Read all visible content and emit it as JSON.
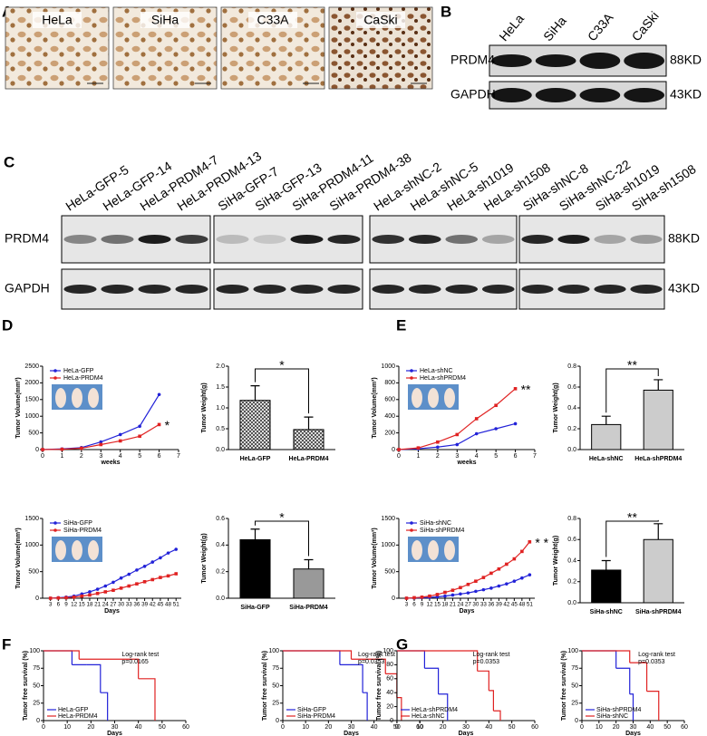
{
  "panel_labels": [
    "A",
    "B",
    "C",
    "D",
    "E",
    "F",
    "G"
  ],
  "panel_a": {
    "cells": [
      "HeLa",
      "SiHa",
      "C33A",
      "CaSki"
    ]
  },
  "panel_b": {
    "lanes": [
      "HeLa",
      "SiHa",
      "C33A",
      "CaSki"
    ],
    "blots": [
      {
        "protein": "PRDM4",
        "size": "88KD"
      },
      {
        "protein": "GAPDH",
        "size": "43KD"
      }
    ]
  },
  "panel_c": {
    "groups": [
      [
        "HeLa-GFP-5",
        "HeLa-GFP-14",
        "HeLa-PRDM4-7",
        "HeLa-PRDM4-13"
      ],
      [
        "SiHa-GFP-7",
        "SiHa-GFP-13",
        "SiHa-PRDM4-11",
        "SiHa-PRDM4-38"
      ],
      [
        "HeLa-shNC-2",
        "HeLa-shNC-5",
        "HeLa-sh1019",
        "HeLa-sh1508"
      ],
      [
        "SiHa-shNC-8",
        "SiHa-shNC-22",
        "SiHa-sh1019",
        "SiHa-sh1508"
      ]
    ],
    "blots": [
      {
        "protein": "PRDM4",
        "size": "88KD"
      },
      {
        "protein": "GAPDH",
        "size": "43KD"
      }
    ]
  },
  "charts": [
    {
      "type": "line",
      "xlabel": "weeks",
      "ylabel": "Tumor Volume(mm³)",
      "x": [
        0,
        1,
        2,
        3,
        4,
        5,
        6
      ],
      "xlim": [
        0,
        7
      ],
      "xticks": [
        0,
        1,
        2,
        3,
        4,
        5,
        6,
        7
      ],
      "ylim": [
        0,
        2500
      ],
      "yticks": [
        0,
        500,
        1000,
        1500,
        2000,
        2500
      ],
      "series": [
        {
          "name": "HeLa-GFP",
          "color": "#2222d8",
          "values": [
            0,
            20,
            60,
            230,
            450,
            700,
            1650
          ]
        },
        {
          "name": "HeLa-PRDM4",
          "color": "#e02222",
          "values": [
            0,
            10,
            40,
            150,
            260,
            400,
            750
          ]
        }
      ],
      "annotation": "*"
    },
    {
      "type": "bar",
      "ylabel": "Tumor Weight(g)",
      "categories": [
        "HeLa-GFP",
        "HeLa-PRDM4"
      ],
      "values": [
        1.18,
        0.48
      ],
      "errors": [
        0.35,
        0.3
      ],
      "colors": [
        "#888888",
        "#aaaaaa"
      ],
      "hatch": true,
      "ylim": [
        0,
        2
      ],
      "yticks": [
        {
          "value": 0,
          "label": "0.0"
        },
        {
          "value": 0.5,
          "label": "0.5"
        },
        {
          "value": 1,
          "label": "1.0"
        },
        {
          "value": 1.5,
          "label": "1.5"
        },
        {
          "value": 2,
          "label": "2.0"
        }
      ],
      "annotation": "*"
    },
    {
      "type": "line",
      "xlabel": "Days",
      "ylabel": "Tumor Volume(mm³)",
      "x": [
        3,
        6,
        9,
        12,
        15,
        18,
        21,
        24,
        27,
        30,
        33,
        36,
        39,
        42,
        45,
        48,
        51
      ],
      "xlim": [
        0,
        53
      ],
      "xticks": [
        3,
        6,
        9,
        12,
        15,
        18,
        21,
        24,
        27,
        30,
        33,
        36,
        39,
        42,
        45,
        48,
        51
      ],
      "ylim": [
        0,
        1500
      ],
      "yticks": [
        0,
        500,
        1000,
        1500
      ],
      "series": [
        {
          "name": "SiHa-GFP",
          "color": "#2222d8",
          "values": [
            0,
            10,
            20,
            40,
            80,
            120,
            170,
            230,
            300,
            380,
            450,
            530,
            600,
            680,
            760,
            850,
            920
          ]
        },
        {
          "name": "SiHa-PRDM4",
          "color": "#e02222",
          "values": [
            0,
            5,
            10,
            20,
            40,
            60,
            90,
            120,
            150,
            190,
            230,
            270,
            310,
            350,
            390,
            420,
            460
          ]
        }
      ]
    },
    {
      "type": "bar",
      "ylabel": "Tumor Weight(g)",
      "categories": [
        "SiHa-GFP",
        "SiHa-PRDM4"
      ],
      "values": [
        0.44,
        0.22
      ],
      "errors": [
        0.08,
        0.07
      ],
      "colors": [
        "#000000",
        "#999999"
      ],
      "hatch": false,
      "ylim": [
        0,
        0.6
      ],
      "yticks": [
        {
          "value": 0,
          "label": "0.0"
        },
        {
          "value": 0.2,
          "label": "0.2"
        },
        {
          "value": 0.4,
          "label": "0.4"
        },
        {
          "value": 0.6,
          "label": "0.6"
        }
      ],
      "annotation": "*"
    },
    {
      "type": "line",
      "xlabel": "weeks",
      "ylabel": "Tumor Volume(mm³)",
      "x": [
        0,
        1,
        2,
        3,
        4,
        5,
        6
      ],
      "xlim": [
        0,
        7
      ],
      "xticks": [
        0,
        1,
        2,
        3,
        4,
        5,
        6,
        7
      ],
      "ylim": [
        0,
        1000
      ],
      "yticks": [
        0,
        200,
        400,
        600,
        800,
        1000
      ],
      "series": [
        {
          "name": "HeLa-shNC",
          "color": "#2222d8",
          "values": [
            0,
            10,
            30,
            60,
            190,
            250,
            310
          ]
        },
        {
          "name": "HeLa-shPRDM4",
          "color": "#e02222",
          "values": [
            0,
            20,
            90,
            180,
            370,
            530,
            730
          ]
        }
      ],
      "annotation": "**"
    },
    {
      "type": "bar",
      "ylabel": "Tumor Weight(g)",
      "categories": [
        "HeLa-shNC",
        "HeLa-shPRDM4"
      ],
      "values": [
        0.24,
        0.57
      ],
      "errors": [
        0.08,
        0.1
      ],
      "colors": [
        "#cccccc",
        "#cccccc"
      ],
      "hatch": false,
      "ylim": [
        0,
        0.8
      ],
      "yticks": [
        {
          "value": 0,
          "label": "0.0"
        },
        {
          "value": 0.2,
          "label": "0.2"
        },
        {
          "value": 0.4,
          "label": "0.4"
        },
        {
          "value": 0.6,
          "label": "0.6"
        },
        {
          "value": 0.8,
          "label": "0.8"
        }
      ],
      "annotation": "**"
    },
    {
      "type": "line",
      "xlabel": "Days",
      "ylabel": "Tumor Volume(mm³)",
      "x": [
        3,
        6,
        9,
        12,
        15,
        18,
        21,
        24,
        27,
        30,
        33,
        36,
        39,
        42,
        45,
        48,
        51
      ],
      "xlim": [
        0,
        53
      ],
      "xticks": [
        3,
        6,
        9,
        12,
        15,
        18,
        21,
        24,
        27,
        30,
        33,
        36,
        39,
        42,
        45,
        48,
        51
      ],
      "ylim": [
        0,
        1500
      ],
      "yticks": [
        0,
        500,
        1000,
        1500
      ],
      "series": [
        {
          "name": "SiHa-shNC",
          "color": "#2222d8",
          "values": [
            0,
            5,
            10,
            15,
            25,
            40,
            60,
            80,
            100,
            130,
            160,
            190,
            230,
            270,
            320,
            380,
            440
          ]
        },
        {
          "name": "SiHa-shPRDM4",
          "color": "#e02222",
          "values": [
            0,
            10,
            20,
            40,
            70,
            110,
            150,
            200,
            260,
            320,
            390,
            470,
            550,
            640,
            740,
            880,
            1060
          ]
        }
      ],
      "annotation": "* *"
    },
    {
      "type": "bar",
      "ylabel": "Tumor Weight(g)",
      "categories": [
        "SiHa-shNC",
        "SiHa-shPRDM4"
      ],
      "values": [
        0.31,
        0.6
      ],
      "errors": [
        0.09,
        0.15
      ],
      "colors": [
        "#000000",
        "#cccccc"
      ],
      "hatch": false,
      "ylim": [
        0,
        0.8
      ],
      "yticks": [
        {
          "value": 0,
          "label": "0.0"
        },
        {
          "value": 0.2,
          "label": "0.2"
        },
        {
          "value": 0.4,
          "label": "0.4"
        },
        {
          "value": 0.6,
          "label": "0.6"
        },
        {
          "value": 0.8,
          "label": "0.8"
        }
      ],
      "annotation": "**"
    },
    {
      "type": "survival",
      "xlabel": "Days",
      "ylabel": "Tumor free survival (%)",
      "test": "Log-rank test",
      "p_value": "p=0.0165",
      "xlim": [
        0,
        60
      ],
      "xticks": [
        0,
        10,
        20,
        30,
        40,
        50,
        60
      ],
      "ylim": [
        0,
        100
      ],
      "yticks": [
        0,
        25,
        50,
        75,
        100
      ],
      "series": [
        {
          "name": "HeLa-GFP",
          "color": "#2222d8",
          "x": [
            0,
            12,
            18,
            24,
            27
          ],
          "values": [
            100,
            80,
            80,
            40,
            0
          ]
        },
        {
          "name": "HeLa-PRDM4",
          "color": "#e02222",
          "x": [
            0,
            15,
            40,
            47
          ],
          "values": [
            100,
            88,
            60,
            0
          ]
        }
      ]
    },
    {
      "type": "survival",
      "xlabel": "Days",
      "ylabel": "Tumor free survival (%)",
      "test": "Log-rank test",
      "p_value": "p=0.0353",
      "xlim": [
        0,
        60
      ],
      "xticks": [
        0,
        10,
        20,
        30,
        40,
        50,
        60
      ],
      "ylim": [
        0,
        100
      ],
      "yticks": [
        0,
        25,
        50,
        75,
        100
      ],
      "series": [
        {
          "name": "SiHa-GFP",
          "color": "#2222d8",
          "x": [
            0,
            25,
            35,
            37
          ],
          "values": [
            100,
            80,
            40,
            0
          ]
        },
        {
          "name": "SiHa-PRDM4",
          "color": "#e02222",
          "x": [
            0,
            30,
            45,
            50,
            52
          ],
          "values": [
            100,
            88,
            67,
            33,
            0
          ]
        }
      ]
    },
    {
      "type": "survival",
      "xlabel": "Days",
      "ylabel": "Tumor free survival (%)",
      "test": "Log-rank test",
      "p_value": "p=0.0353",
      "xlim": [
        0,
        60
      ],
      "xticks": [
        0,
        10,
        20,
        30,
        40,
        50,
        60
      ],
      "ylim": [
        0,
        100
      ],
      "yticks": [
        0,
        20,
        40,
        60,
        80,
        100
      ],
      "series": [
        {
          "name": "HeLa-shPRDM4",
          "color": "#2222d8",
          "x": [
            0,
            12,
            18,
            22
          ],
          "values": [
            100,
            75,
            38,
            0
          ]
        },
        {
          "name": "HeLa-shNC",
          "color": "#e02222",
          "x": [
            0,
            35,
            40,
            42,
            45
          ],
          "values": [
            100,
            71,
            43,
            14,
            0
          ]
        }
      ]
    },
    {
      "type": "survival",
      "xlabel": "Days",
      "ylabel": "Tumor free survival (%)",
      "test": "Log-rank test",
      "p_value": "p=0.0353",
      "xlim": [
        0,
        60
      ],
      "xticks": [
        0,
        10,
        20,
        30,
        40,
        50,
        60
      ],
      "ylim": [
        0,
        100
      ],
      "yticks": [
        0,
        25,
        50,
        75,
        100
      ],
      "series": [
        {
          "name": "SiHa-shPRDM4",
          "color": "#2222d8",
          "x": [
            0,
            20,
            28,
            30
          ],
          "values": [
            100,
            75,
            38,
            0
          ]
        },
        {
          "name": "SiHa-shNC",
          "color": "#e02222",
          "x": [
            0,
            28,
            38,
            45
          ],
          "values": [
            100,
            83,
            42,
            0
          ]
        }
      ]
    }
  ]
}
